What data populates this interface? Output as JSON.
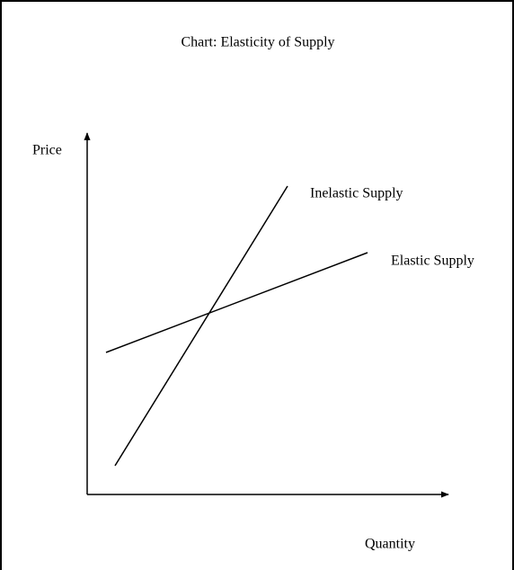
{
  "title": "Chart: Elasticity of Supply",
  "axes": {
    "y_label": "Price",
    "x_label": "Quantity"
  },
  "curves": [
    {
      "label": "Inelastic Supply"
    },
    {
      "label": "Elastic Supply"
    }
  ]
}
